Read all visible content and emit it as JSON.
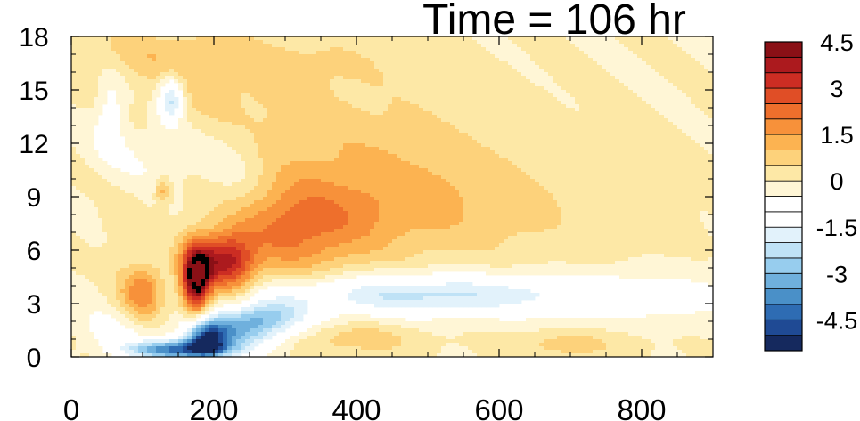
{
  "chart_data": {
    "type": "heatmap",
    "title": "Time = 106 hr",
    "xlabel": "",
    "ylabel": "",
    "xlim": [
      0,
      900
    ],
    "ylim": [
      0,
      18
    ],
    "x_ticks": [
      0,
      200,
      400,
      600,
      800
    ],
    "y_ticks": [
      0,
      3,
      6,
      9,
      12,
      15,
      18
    ],
    "colorbar": {
      "levels": [
        -5.5,
        -5,
        -4.5,
        -4,
        -3.5,
        -3,
        -2.5,
        -2,
        -1.5,
        -1,
        -0.5,
        0,
        0.5,
        1,
        1.5,
        2,
        2.5,
        3,
        3.5,
        4,
        4.5,
        5,
        5.5
      ],
      "labels": [
        "4.5",
        "3",
        "1.5",
        "0",
        "-1.5",
        "-3",
        "-4.5"
      ],
      "label_values": [
        4.5,
        3,
        1.5,
        0,
        -1.5,
        -3,
        -4.5
      ],
      "colors": [
        "#15295e",
        "#1f4a94",
        "#2e6cb3",
        "#4a90c8",
        "#6fb0dd",
        "#97cdee",
        "#bfe2f6",
        "#e2f2fb",
        "#ffffff",
        "#ffffff",
        "#fff6d6",
        "#fde8a6",
        "#fdd27b",
        "#fcb351",
        "#f7913a",
        "#ee6f2c",
        "#e04e26",
        "#cc2d23",
        "#ac1a1e",
        "#8a1016"
      ]
    },
    "features": [
      {
        "x": 175,
        "y": 4.2,
        "sx": 14,
        "sy": 1.3,
        "amp": 4.8
      },
      {
        "x": 200,
        "y": 5.4,
        "sx": 30,
        "sy": 1.0,
        "amp": 2.4
      },
      {
        "x": 228,
        "y": 5.0,
        "sx": 22,
        "sy": 1.3,
        "amp": 1.6
      },
      {
        "x": 100,
        "y": 3.8,
        "sx": 22,
        "sy": 1.2,
        "amp": 2.2
      },
      {
        "x": 300,
        "y": 7.0,
        "sx": 70,
        "sy": 1.8,
        "amp": 1.6
      },
      {
        "x": 400,
        "y": 8.0,
        "sx": 120,
        "sy": 2.0,
        "amp": 0.9
      },
      {
        "x": 380,
        "y": 12.5,
        "sx": 140,
        "sy": 2.5,
        "amp": 0.6
      },
      {
        "x": 200,
        "y": 14.5,
        "sx": 90,
        "sy": 2.5,
        "amp": 0.5
      },
      {
        "x": 120,
        "y": 17.0,
        "sx": 110,
        "sy": 1.0,
        "amp": 0.6
      },
      {
        "x": 340,
        "y": 16.5,
        "sx": 90,
        "sy": 1.0,
        "amp": 0.35
      },
      {
        "x": 500,
        "y": 9.5,
        "sx": 140,
        "sy": 2.0,
        "amp": 0.45
      },
      {
        "x": 640,
        "y": 7.5,
        "sx": 110,
        "sy": 2.2,
        "amp": 0.3
      },
      {
        "x": 400,
        "y": 1.0,
        "sx": 60,
        "sy": 0.6,
        "amp": 0.8
      },
      {
        "x": 700,
        "y": 0.7,
        "sx": 50,
        "sy": 0.5,
        "amp": 0.8
      },
      {
        "x": 128,
        "y": 9.3,
        "sx": 7,
        "sy": 0.5,
        "amp": 1.3
      },
      {
        "x": 65,
        "y": 6.5,
        "sx": 20,
        "sy": 1.5,
        "amp": 0.6
      },
      {
        "x": 150,
        "y": 0.4,
        "sx": 50,
        "sy": 0.4,
        "amp": -4.0
      },
      {
        "x": 190,
        "y": 1.0,
        "sx": 20,
        "sy": 0.7,
        "amp": -3.5
      },
      {
        "x": 230,
        "y": 1.5,
        "sx": 45,
        "sy": 0.8,
        "amp": -2.6
      },
      {
        "x": 280,
        "y": 2.3,
        "sx": 40,
        "sy": 0.7,
        "amp": -1.8
      },
      {
        "x": 450,
        "y": 3.5,
        "sx": 140,
        "sy": 0.8,
        "amp": -1.7
      },
      {
        "x": 650,
        "y": 3.5,
        "sx": 160,
        "sy": 0.9,
        "amp": -0.9
      },
      {
        "x": 820,
        "y": 3.3,
        "sx": 110,
        "sy": 0.9,
        "amp": -0.5
      },
      {
        "x": 140,
        "y": 14.5,
        "sx": 12,
        "sy": 0.9,
        "amp": -2.4
      },
      {
        "x": 55,
        "y": 13.8,
        "sx": 15,
        "sy": 1.5,
        "amp": -1.0
      },
      {
        "x": 120,
        "y": 11.5,
        "sx": 60,
        "sy": 1.5,
        "amp": -0.7
      },
      {
        "x": 230,
        "y": 10.0,
        "sx": 40,
        "sy": 2.5,
        "amp": -0.7
      },
      {
        "x": 60,
        "y": 1.5,
        "sx": 40,
        "sy": 0.8,
        "amp": -0.7
      },
      {
        "x": 90,
        "y": 5.5,
        "sx": 40,
        "sy": 1.5,
        "amp": -0.5
      }
    ]
  }
}
